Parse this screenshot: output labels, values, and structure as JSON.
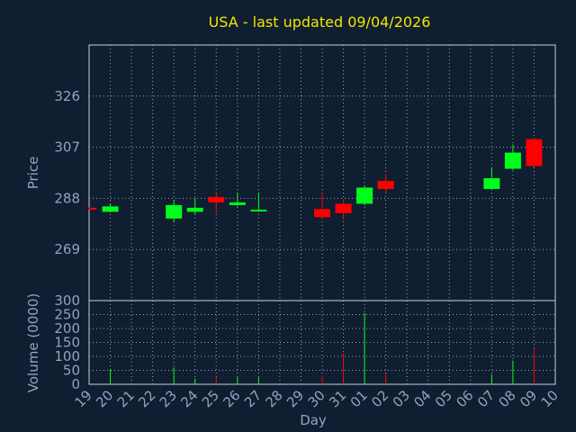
{
  "chart_data": {
    "type": "candlestick",
    "title": "USA - last updated 09/04/2026",
    "xlabel": "Day",
    "x_ticks": [
      "19",
      "20",
      "21",
      "22",
      "23",
      "24",
      "25",
      "26",
      "27",
      "28",
      "29",
      "30",
      "31",
      "01",
      "02",
      "03",
      "04",
      "05",
      "06",
      "07",
      "08",
      "09",
      "10"
    ],
    "price_panel": {
      "ylabel": "Price",
      "ylim": [
        250.0,
        345.0
      ],
      "y_ticks": [
        269,
        288,
        307,
        326
      ],
      "up_color": "#00ff1a",
      "down_color": "#ff0000"
    },
    "volume_panel": {
      "ylabel": "Volume (0000)",
      "ylim": [
        0,
        300
      ],
      "y_ticks": [
        0,
        50,
        100,
        150,
        200,
        250,
        300
      ]
    },
    "candles": [
      {
        "day": "19",
        "open": 284.5,
        "close": 284.0,
        "high": 284.6,
        "low": 283.9,
        "volume": 0
      },
      {
        "day": "20",
        "open": 283.0,
        "close": 285.0,
        "high": 286.0,
        "low": 282.8,
        "volume": 55
      },
      {
        "day": "23",
        "open": 280.5,
        "close": 285.5,
        "high": 287.5,
        "low": 279.0,
        "volume": 60
      },
      {
        "day": "24",
        "open": 283.0,
        "close": 284.5,
        "high": 288.0,
        "low": 282.0,
        "volume": 20
      },
      {
        "day": "25",
        "open": 288.5,
        "close": 286.5,
        "high": 290.0,
        "low": 282.5,
        "volume": 25
      },
      {
        "day": "26",
        "open": 285.5,
        "close": 286.5,
        "high": 290.0,
        "low": 285.0,
        "volume": 25
      },
      {
        "day": "27",
        "open": 283.3,
        "close": 283.8,
        "high": 290.0,
        "low": 283.0,
        "volume": 25
      },
      {
        "day": "30",
        "open": 284.0,
        "close": 281.0,
        "high": 290.0,
        "low": 280.5,
        "volume": 30
      },
      {
        "day": "31",
        "open": 286.0,
        "close": 282.5,
        "high": 287.5,
        "low": 280.0,
        "volume": 110
      },
      {
        "day": "01",
        "open": 286.0,
        "close": 292.0,
        "high": 292.5,
        "low": 285.5,
        "volume": 255
      },
      {
        "day": "02",
        "open": 294.5,
        "close": 291.5,
        "high": 297.0,
        "low": 290.0,
        "volume": 40
      },
      {
        "day": "07",
        "open": 291.5,
        "close": 295.5,
        "high": 299.5,
        "low": 291.0,
        "volume": 35
      },
      {
        "day": "08",
        "open": 299.0,
        "close": 305.0,
        "high": 308.0,
        "low": 298.5,
        "volume": 85
      },
      {
        "day": "09",
        "open": 310.0,
        "close": 300.0,
        "high": 310.5,
        "low": 299.5,
        "volume": 130
      }
    ]
  }
}
